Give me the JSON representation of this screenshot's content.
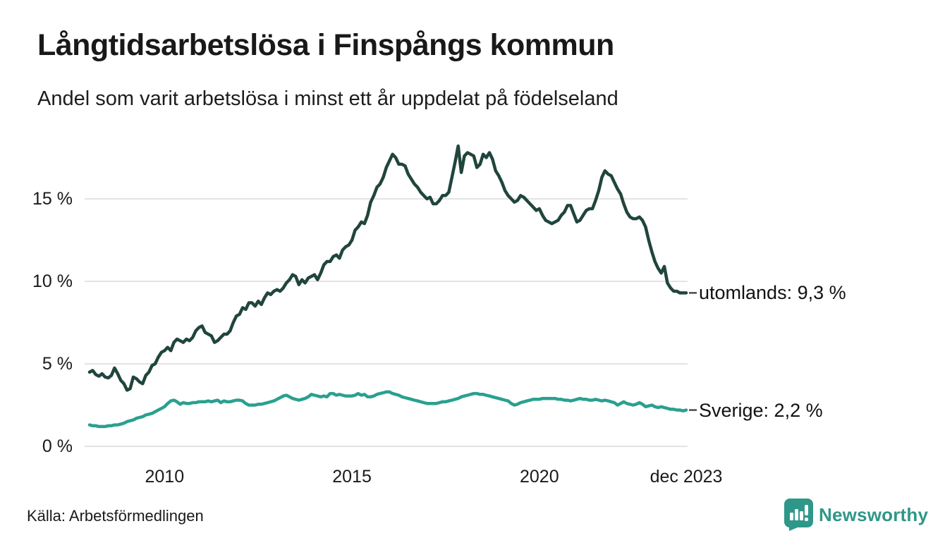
{
  "page": {
    "title": "Långtidsarbetslösa i Finspångs kommun",
    "subtitle": "Andel som varit arbetslösa i minst ett år uppdelat på födelseland",
    "source_note": "Källa: Arbetsförmedlingen",
    "brand": {
      "name": "Newsworthy",
      "icon": "newsworthy-bar-chart-bubble-icon",
      "color": "#2f9789"
    }
  },
  "colors": {
    "background": "#ffffff",
    "grid": "#e3e3e3",
    "text": "#1a1a1a",
    "label_dash": "#4a4a4a"
  },
  "chart_data": {
    "type": "line",
    "title": "Långtidsarbetslösa i Finspångs kommun",
    "subtitle": "Andel som varit arbetslösa i minst ett år uppdelat på födelseland",
    "x_unit": "month",
    "x_start_year": 2008,
    "x_start": "2008-01",
    "x_end": "2023-12",
    "ylim": [
      0,
      18.5
    ],
    "grid": "horizontal",
    "legend_position": "end-of-line-labels",
    "y_axis": {
      "ticks": [
        {
          "value": 0,
          "label": "0 %"
        },
        {
          "value": 5,
          "label": "5 %"
        },
        {
          "value": 10,
          "label": "10 %"
        },
        {
          "value": 15,
          "label": "15 %"
        }
      ]
    },
    "x_axis": {
      "ticks": [
        {
          "t": 2010.0,
          "label": "2010"
        },
        {
          "t": 2015.0,
          "label": "2015"
        },
        {
          "t": 2020.0,
          "label": "2020"
        },
        {
          "t": 2023.9167,
          "label": "dec 2023"
        }
      ]
    },
    "series": [
      {
        "name": "utomlands",
        "color": "#20453d",
        "end_label": "utomlands: 9,3 %",
        "values": [
          4.5,
          4.6,
          4.35,
          4.25,
          4.4,
          4.2,
          4.15,
          4.3,
          4.75,
          4.4,
          4.0,
          3.8,
          3.4,
          3.5,
          4.2,
          4.1,
          3.9,
          3.8,
          4.3,
          4.5,
          4.9,
          5.0,
          5.4,
          5.7,
          5.8,
          6.0,
          5.8,
          6.3,
          6.5,
          6.4,
          6.3,
          6.5,
          6.4,
          6.6,
          7.0,
          7.2,
          7.3,
          6.9,
          6.8,
          6.7,
          6.3,
          6.4,
          6.6,
          6.8,
          6.8,
          7.0,
          7.5,
          7.9,
          8.0,
          8.4,
          8.3,
          8.7,
          8.7,
          8.5,
          8.8,
          8.6,
          9.0,
          9.3,
          9.2,
          9.4,
          9.5,
          9.4,
          9.6,
          9.9,
          10.1,
          10.4,
          10.3,
          9.8,
          10.1,
          9.9,
          10.2,
          10.3,
          10.4,
          10.1,
          10.5,
          11.0,
          11.2,
          11.2,
          11.5,
          11.6,
          11.4,
          11.9,
          12.1,
          12.2,
          12.5,
          13.1,
          13.3,
          13.6,
          13.5,
          14.0,
          14.8,
          15.2,
          15.7,
          15.9,
          16.3,
          16.9,
          17.3,
          17.7,
          17.5,
          17.1,
          17.1,
          17.0,
          16.5,
          16.2,
          15.9,
          15.7,
          15.4,
          15.2,
          15.0,
          15.1,
          14.7,
          14.7,
          14.9,
          15.2,
          15.2,
          15.4,
          16.3,
          17.2,
          18.2,
          16.6,
          17.6,
          17.8,
          17.7,
          17.6,
          16.9,
          17.1,
          17.7,
          17.5,
          17.8,
          17.4,
          16.7,
          16.4,
          16.0,
          15.5,
          15.2,
          15.0,
          14.8,
          14.9,
          15.2,
          15.1,
          14.9,
          14.7,
          14.5,
          14.3,
          14.4,
          14.0,
          13.7,
          13.6,
          13.5,
          13.6,
          13.7,
          14.0,
          14.2,
          14.6,
          14.6,
          14.1,
          13.6,
          13.7,
          14.0,
          14.3,
          14.4,
          14.4,
          14.9,
          15.5,
          16.3,
          16.7,
          16.5,
          16.4,
          16.0,
          15.6,
          15.3,
          14.7,
          14.2,
          13.9,
          13.8,
          13.8,
          13.9,
          13.7,
          13.3,
          12.5,
          11.8,
          11.2,
          10.8,
          10.5,
          10.9,
          9.9,
          9.6,
          9.4,
          9.4,
          9.3,
          9.3,
          9.3
        ]
      },
      {
        "name": "Sverige",
        "color": "#2aa08f",
        "end_label": "Sverige: 2,2 %",
        "values": [
          1.3,
          1.25,
          1.25,
          1.2,
          1.2,
          1.2,
          1.25,
          1.25,
          1.3,
          1.3,
          1.35,
          1.4,
          1.5,
          1.55,
          1.6,
          1.7,
          1.75,
          1.8,
          1.9,
          1.95,
          2.0,
          2.1,
          2.2,
          2.3,
          2.4,
          2.6,
          2.75,
          2.8,
          2.7,
          2.55,
          2.65,
          2.6,
          2.6,
          2.65,
          2.65,
          2.7,
          2.7,
          2.7,
          2.75,
          2.7,
          2.75,
          2.8,
          2.65,
          2.75,
          2.7,
          2.7,
          2.75,
          2.8,
          2.8,
          2.75,
          2.6,
          2.5,
          2.5,
          2.5,
          2.55,
          2.55,
          2.6,
          2.65,
          2.7,
          2.75,
          2.85,
          2.95,
          3.05,
          3.1,
          3.0,
          2.9,
          2.85,
          2.8,
          2.85,
          2.9,
          3.0,
          3.15,
          3.1,
          3.05,
          3.0,
          3.05,
          3.0,
          3.2,
          3.2,
          3.1,
          3.15,
          3.1,
          3.05,
          3.05,
          3.05,
          3.1,
          3.2,
          3.1,
          3.15,
          3.0,
          3.0,
          3.05,
          3.15,
          3.2,
          3.25,
          3.3,
          3.3,
          3.2,
          3.15,
          3.1,
          3.0,
          2.95,
          2.9,
          2.85,
          2.8,
          2.75,
          2.7,
          2.65,
          2.6,
          2.6,
          2.6,
          2.6,
          2.65,
          2.7,
          2.7,
          2.75,
          2.8,
          2.85,
          2.9,
          3.0,
          3.05,
          3.1,
          3.15,
          3.2,
          3.2,
          3.15,
          3.15,
          3.1,
          3.05,
          3.0,
          2.95,
          2.9,
          2.85,
          2.8,
          2.75,
          2.6,
          2.5,
          2.55,
          2.65,
          2.7,
          2.75,
          2.8,
          2.85,
          2.85,
          2.85,
          2.9,
          2.9,
          2.9,
          2.9,
          2.9,
          2.85,
          2.85,
          2.8,
          2.8,
          2.75,
          2.8,
          2.85,
          2.9,
          2.85,
          2.85,
          2.8,
          2.8,
          2.85,
          2.8,
          2.75,
          2.8,
          2.75,
          2.7,
          2.65,
          2.5,
          2.6,
          2.7,
          2.6,
          2.55,
          2.5,
          2.55,
          2.65,
          2.55,
          2.4,
          2.45,
          2.5,
          2.4,
          2.35,
          2.4,
          2.35,
          2.3,
          2.25,
          2.25,
          2.2,
          2.2,
          2.15,
          2.2
        ]
      }
    ]
  }
}
